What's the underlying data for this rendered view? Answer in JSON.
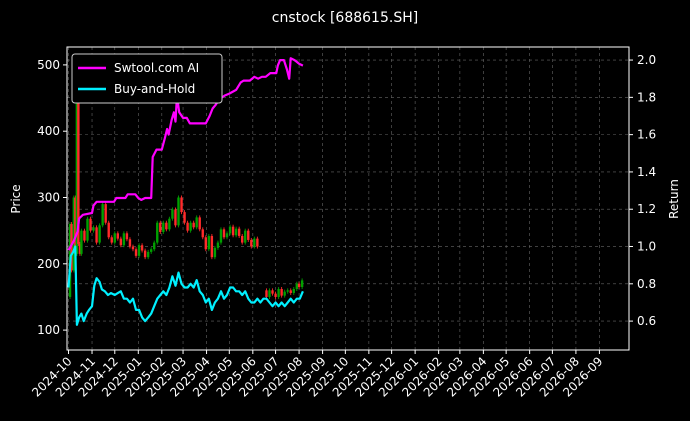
{
  "chart_data": {
    "type": "line",
    "title": "cnstock [688615.SH]",
    "ylabel": "Price",
    "y2label": "Return",
    "ylim": [
      70,
      527
    ],
    "y2lim": [
      0.445,
      2.07
    ],
    "yticks": [
      100,
      200,
      300,
      400,
      500
    ],
    "y2ticks": [
      0.6,
      0.8,
      1.0,
      1.2,
      1.4,
      1.6,
      1.8,
      2.0
    ],
    "y2tick_labels": [
      "0.6",
      "0.8",
      "1.0",
      "1.2",
      "1.4",
      "1.6",
      "1.8",
      "2.0"
    ],
    "xlim": [
      "2024-09-29",
      "2026-10-10"
    ],
    "xticks": [
      "2024-10-01",
      "2024-11-01",
      "2024-12-01",
      "2025-01-01",
      "2025-02-01",
      "2025-03-01",
      "2025-04-01",
      "2025-05-01",
      "2025-06-01",
      "2025-07-01",
      "2025-08-01",
      "2025-09-01",
      "2025-10-01",
      "2025-11-01",
      "2025-12-01",
      "2026-01-01",
      "2026-02-01",
      "2026-03-01",
      "2026-04-01",
      "2026-05-01",
      "2026-06-01",
      "2026-07-01",
      "2026-08-01",
      "2026-09-01"
    ],
    "xtick_labels": [
      "2024-10",
      "2024-11",
      "2024-12",
      "2025-01",
      "2025-02",
      "2025-03",
      "2025-04",
      "2025-05",
      "2025-06",
      "2025-07",
      "2025-08",
      "2025-09",
      "2025-10",
      "2025-11",
      "2025-12",
      "2026-01",
      "2026-02",
      "2026-03",
      "2026-04",
      "2026-05",
      "2026-06",
      "2026-07",
      "2026-08",
      "2026-09"
    ],
    "grid": true,
    "legend_position": "top-left",
    "colors": {
      "up": "#00a000",
      "down": "#ff2a2a",
      "strategy": "#ff00ff",
      "benchmark": "#00f0ff",
      "grid": "#666666"
    },
    "price_segments": [
      [
        [
          "2024-10-01",
          150
        ],
        [
          "2024-10-03",
          260
        ],
        [
          "2024-10-05",
          190
        ],
        [
          "2024-10-08",
          300
        ],
        [
          "2024-10-10",
          215
        ],
        [
          "2024-10-12",
          470
        ],
        [
          "2024-10-14",
          230
        ],
        [
          "2024-10-16",
          215
        ],
        [
          "2024-10-18",
          250
        ],
        [
          "2024-10-22",
          235
        ],
        [
          "2024-10-26",
          268
        ],
        [
          "2024-10-30",
          250
        ],
        [
          "2024-11-03",
          255
        ],
        [
          "2024-11-07",
          232
        ],
        [
          "2024-11-11",
          258
        ],
        [
          "2024-11-15",
          290
        ],
        [
          "2024-11-19",
          262
        ],
        [
          "2024-11-23",
          240
        ],
        [
          "2024-11-27",
          232
        ],
        [
          "2024-12-01",
          246
        ],
        [
          "2024-12-05",
          238
        ],
        [
          "2024-12-09",
          228
        ],
        [
          "2024-12-13",
          246
        ],
        [
          "2024-12-17",
          237
        ],
        [
          "2024-12-21",
          226
        ],
        [
          "2024-12-25",
          222
        ],
        [
          "2024-12-29",
          212
        ],
        [
          "2025-01-02",
          228
        ],
        [
          "2025-01-06",
          220
        ],
        [
          "2025-01-10",
          210
        ],
        [
          "2025-01-14",
          218
        ],
        [
          "2025-01-18",
          222
        ],
        [
          "2025-01-22",
          232
        ],
        [
          "2025-01-26",
          262
        ],
        [
          "2025-01-30",
          248
        ],
        [
          "2025-02-03",
          262
        ],
        [
          "2025-02-07",
          252
        ],
        [
          "2025-02-11",
          268
        ],
        [
          "2025-02-15",
          282
        ],
        [
          "2025-02-19",
          258
        ],
        [
          "2025-02-23",
          300
        ],
        [
          "2025-02-27",
          278
        ],
        [
          "2025-03-03",
          262
        ],
        [
          "2025-03-07",
          250
        ],
        [
          "2025-03-11",
          262
        ],
        [
          "2025-03-15",
          255
        ],
        [
          "2025-03-19",
          270
        ],
        [
          "2025-03-23",
          252
        ],
        [
          "2025-03-27",
          240
        ],
        [
          "2025-03-31",
          222
        ],
        [
          "2025-04-04",
          242
        ],
        [
          "2025-04-08",
          210
        ],
        [
          "2025-04-12",
          224
        ],
        [
          "2025-04-16",
          232
        ],
        [
          "2025-04-20",
          252
        ],
        [
          "2025-04-24",
          240
        ],
        [
          "2025-04-28",
          246
        ],
        [
          "2025-05-02",
          256
        ],
        [
          "2025-05-06",
          243
        ],
        [
          "2025-05-10",
          253
        ],
        [
          "2025-05-14",
          242
        ],
        [
          "2025-05-18",
          232
        ],
        [
          "2025-05-22",
          250
        ],
        [
          "2025-05-26",
          236
        ],
        [
          "2025-05-30",
          226
        ],
        [
          "2025-06-03",
          238
        ],
        [
          "2025-06-07",
          226
        ]
      ],
      [
        [
          "2025-06-15",
          160
        ],
        [
          "2025-06-19",
          150
        ],
        [
          "2025-06-23",
          160
        ],
        [
          "2025-06-27",
          155
        ],
        [
          "2025-07-01",
          150
        ],
        [
          "2025-07-05",
          162
        ],
        [
          "2025-07-09",
          152
        ],
        [
          "2025-07-13",
          158
        ],
        [
          "2025-07-17",
          160
        ],
        [
          "2025-07-21",
          156
        ],
        [
          "2025-07-25",
          162
        ],
        [
          "2025-07-29",
          170
        ],
        [
          "2025-08-01",
          165
        ],
        [
          "2025-08-05",
          175
        ]
      ]
    ],
    "series": [
      {
        "name": "Swtool.com AI",
        "axis": "right",
        "values": [
          [
            "2024-10-01",
            0.98
          ],
          [
            "2024-10-08",
            1.03
          ],
          [
            "2024-10-13",
            1.08
          ],
          [
            "2024-10-15",
            1.15
          ],
          [
            "2024-10-20",
            1.17
          ],
          [
            "2024-11-01",
            1.18
          ],
          [
            "2024-11-03",
            1.22
          ],
          [
            "2024-11-07",
            1.24
          ],
          [
            "2024-11-12",
            1.24
          ],
          [
            "2024-11-15",
            1.24
          ],
          [
            "2024-11-30",
            1.24
          ],
          [
            "2024-12-03",
            1.26
          ],
          [
            "2024-12-15",
            1.26
          ],
          [
            "2024-12-18",
            1.28
          ],
          [
            "2024-12-28",
            1.28
          ],
          [
            "2025-01-01",
            1.26
          ],
          [
            "2025-01-05",
            1.25
          ],
          [
            "2025-01-10",
            1.26
          ],
          [
            "2025-01-18",
            1.26
          ],
          [
            "2025-01-20",
            1.48
          ],
          [
            "2025-01-25",
            1.52
          ],
          [
            "2025-02-01",
            1.52
          ],
          [
            "2025-02-05",
            1.58
          ],
          [
            "2025-02-08",
            1.63
          ],
          [
            "2025-02-10",
            1.6
          ],
          [
            "2025-02-14",
            1.68
          ],
          [
            "2025-02-17",
            1.72
          ],
          [
            "2025-02-19",
            1.67
          ],
          [
            "2025-02-21",
            1.81
          ],
          [
            "2025-02-24",
            1.72
          ],
          [
            "2025-03-01",
            1.69
          ],
          [
            "2025-03-06",
            1.69
          ],
          [
            "2025-03-10",
            1.66
          ],
          [
            "2025-03-15",
            1.66
          ],
          [
            "2025-03-31",
            1.66
          ],
          [
            "2025-04-05",
            1.7
          ],
          [
            "2025-04-09",
            1.74
          ],
          [
            "2025-04-13",
            1.76
          ],
          [
            "2025-04-18",
            1.79
          ],
          [
            "2025-04-25",
            1.81
          ],
          [
            "2025-05-01",
            1.82
          ],
          [
            "2025-05-10",
            1.84
          ],
          [
            "2025-05-16",
            1.88
          ],
          [
            "2025-05-20",
            1.89
          ],
          [
            "2025-05-28",
            1.89
          ],
          [
            "2025-06-03",
            1.91
          ],
          [
            "2025-06-08",
            1.9
          ],
          [
            "2025-06-13",
            1.91
          ],
          [
            "2025-06-18",
            1.91
          ],
          [
            "2025-06-24",
            1.93
          ],
          [
            "2025-07-02",
            1.93
          ],
          [
            "2025-07-04",
            1.97
          ],
          [
            "2025-07-07",
            2.0
          ],
          [
            "2025-07-12",
            2.0
          ],
          [
            "2025-07-16",
            1.95
          ],
          [
            "2025-07-19",
            1.9
          ],
          [
            "2025-07-21",
            2.01
          ],
          [
            "2025-07-26",
            2.0
          ],
          [
            "2025-07-29",
            1.99
          ],
          [
            "2025-08-01",
            1.98
          ],
          [
            "2025-08-06",
            1.97
          ]
        ]
      },
      {
        "name": "Buy-and-Hold",
        "axis": "right",
        "values": [
          [
            "2024-10-01",
            0.78
          ],
          [
            "2024-10-04",
            0.95
          ],
          [
            "2024-10-07",
            0.97
          ],
          [
            "2024-10-10",
            1.0
          ],
          [
            "2024-10-12",
            0.58
          ],
          [
            "2024-10-15",
            0.62
          ],
          [
            "2024-10-18",
            0.64
          ],
          [
            "2024-10-21",
            0.6
          ],
          [
            "2024-10-25",
            0.64
          ],
          [
            "2024-10-28",
            0.66
          ],
          [
            "2024-11-01",
            0.68
          ],
          [
            "2024-11-04",
            0.79
          ],
          [
            "2024-11-07",
            0.83
          ],
          [
            "2024-11-11",
            0.81
          ],
          [
            "2024-11-14",
            0.77
          ],
          [
            "2024-11-18",
            0.76
          ],
          [
            "2024-11-22",
            0.74
          ],
          [
            "2024-11-26",
            0.75
          ],
          [
            "2024-12-01",
            0.74
          ],
          [
            "2024-12-05",
            0.75
          ],
          [
            "2024-12-09",
            0.76
          ],
          [
            "2024-12-13",
            0.72
          ],
          [
            "2024-12-17",
            0.72
          ],
          [
            "2024-12-21",
            0.7
          ],
          [
            "2024-12-25",
            0.72
          ],
          [
            "2024-12-29",
            0.66
          ],
          [
            "2025-01-02",
            0.66
          ],
          [
            "2025-01-06",
            0.62
          ],
          [
            "2025-01-10",
            0.6
          ],
          [
            "2025-01-14",
            0.62
          ],
          [
            "2025-01-18",
            0.64
          ],
          [
            "2025-01-22",
            0.68
          ],
          [
            "2025-01-26",
            0.72
          ],
          [
            "2025-01-30",
            0.74
          ],
          [
            "2025-02-03",
            0.76
          ],
          [
            "2025-02-07",
            0.74
          ],
          [
            "2025-02-11",
            0.78
          ],
          [
            "2025-02-15",
            0.84
          ],
          [
            "2025-02-19",
            0.79
          ],
          [
            "2025-02-23",
            0.86
          ],
          [
            "2025-02-27",
            0.8
          ],
          [
            "2025-03-03",
            0.78
          ],
          [
            "2025-03-07",
            0.78
          ],
          [
            "2025-03-11",
            0.8
          ],
          [
            "2025-03-15",
            0.78
          ],
          [
            "2025-03-19",
            0.82
          ],
          [
            "2025-03-23",
            0.76
          ],
          [
            "2025-03-27",
            0.74
          ],
          [
            "2025-03-31",
            0.7
          ],
          [
            "2025-04-04",
            0.72
          ],
          [
            "2025-04-08",
            0.66
          ],
          [
            "2025-04-12",
            0.7
          ],
          [
            "2025-04-16",
            0.72
          ],
          [
            "2025-04-20",
            0.76
          ],
          [
            "2025-04-24",
            0.72
          ],
          [
            "2025-04-28",
            0.74
          ],
          [
            "2025-05-02",
            0.78
          ],
          [
            "2025-05-06",
            0.78
          ],
          [
            "2025-05-10",
            0.76
          ],
          [
            "2025-05-14",
            0.76
          ],
          [
            "2025-05-18",
            0.74
          ],
          [
            "2025-05-22",
            0.76
          ],
          [
            "2025-05-26",
            0.72
          ],
          [
            "2025-05-30",
            0.7
          ],
          [
            "2025-06-03",
            0.7
          ],
          [
            "2025-06-07",
            0.72
          ],
          [
            "2025-06-11",
            0.7
          ],
          [
            "2025-06-15",
            0.72
          ],
          [
            "2025-06-19",
            0.72
          ],
          [
            "2025-06-23",
            0.7
          ],
          [
            "2025-06-27",
            0.68
          ],
          [
            "2025-07-01",
            0.7
          ],
          [
            "2025-07-05",
            0.68
          ],
          [
            "2025-07-09",
            0.7
          ],
          [
            "2025-07-13",
            0.68
          ],
          [
            "2025-07-17",
            0.7
          ],
          [
            "2025-07-21",
            0.72
          ],
          [
            "2025-07-25",
            0.7
          ],
          [
            "2025-07-29",
            0.72
          ],
          [
            "2025-08-02",
            0.72
          ],
          [
            "2025-08-06",
            0.76
          ]
        ]
      }
    ]
  }
}
